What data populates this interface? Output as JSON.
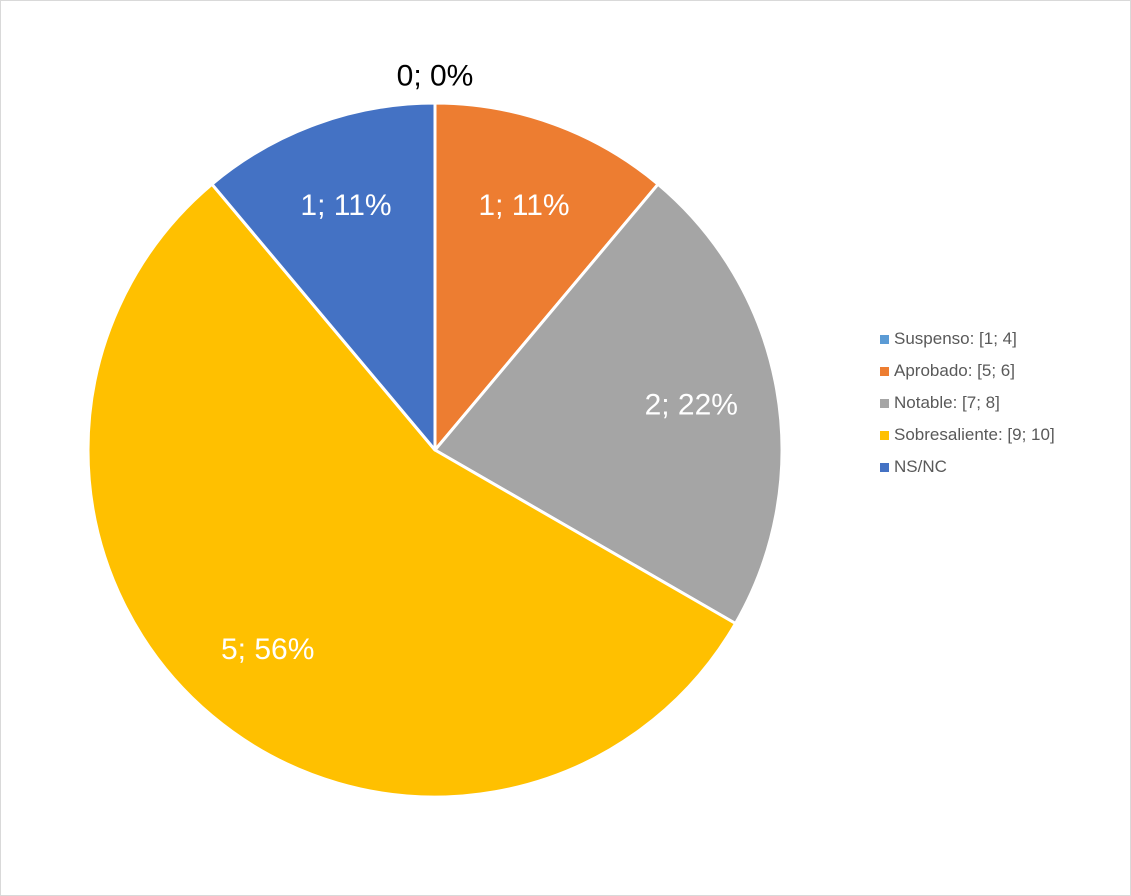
{
  "chart_data": {
    "type": "pie",
    "categories": [
      "Suspenso: [1; 4]",
      "Aprobado: [5; 6]",
      "Notable: [7; 8]",
      "Sobresaliente: [9; 10]",
      "NS/NC"
    ],
    "values": [
      0,
      1,
      2,
      5,
      1
    ],
    "data_labels": [
      "0; 0%",
      "1; 11%",
      "2; 22%",
      "5; 56%",
      "1; 11%"
    ],
    "colors": [
      "#5B9BD5",
      "#ED7D31",
      "#A5A5A5",
      "#FFC000",
      "#4472C4"
    ],
    "start": "12 o'clock",
    "direction": "clockwise",
    "legend_position": "right"
  }
}
